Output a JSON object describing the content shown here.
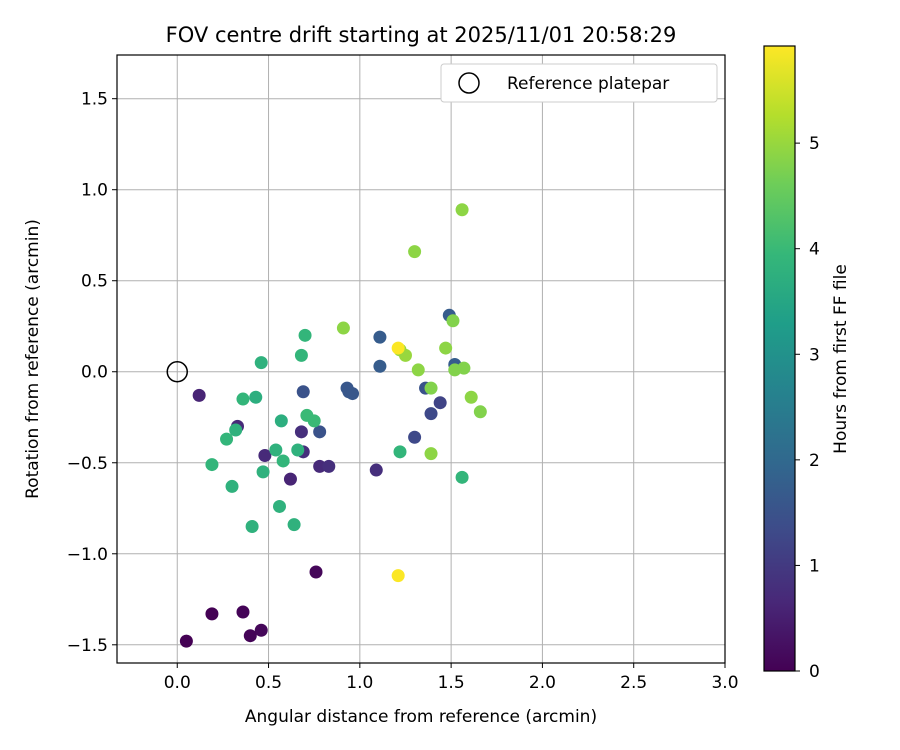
{
  "chart_data": {
    "type": "scatter",
    "title": "FOV centre drift starting at 2025/11/01 20:58:29",
    "xlabel": "Angular distance from reference (arcmin)",
    "ylabel": "Rotation from reference (arcmin)",
    "xlim": [
      -0.33,
      3.0
    ],
    "ylim": [
      -1.6,
      1.74
    ],
    "xticks": [
      0.0,
      0.5,
      1.0,
      1.5,
      2.0,
      2.5,
      3.0
    ],
    "xtick_labels": [
      "0.0",
      "0.5",
      "1.0",
      "1.5",
      "2.0",
      "2.5",
      "3.0"
    ],
    "yticks": [
      -1.5,
      -1.0,
      -0.5,
      0.0,
      0.5,
      1.0,
      1.5
    ],
    "ytick_labels": [
      "−1.5",
      "−1.0",
      "−0.5",
      "0.0",
      "0.5",
      "1.0",
      "1.5"
    ],
    "grid": true,
    "legend": {
      "position": "top-right",
      "entries": [
        "Reference platepar"
      ]
    },
    "reference_point": {
      "x": 0.0,
      "y": 0.0
    },
    "colorbar": {
      "label": "Hours from first FF file",
      "colormap": "viridis",
      "range": [
        0,
        5.92
      ],
      "ticks": [
        0,
        1,
        2,
        3,
        4,
        5
      ],
      "tick_labels": [
        "0",
        "1",
        "2",
        "3",
        "4",
        "5"
      ]
    },
    "points": [
      {
        "x": 0.05,
        "y": -1.48,
        "h": 0.0
      },
      {
        "x": 0.19,
        "y": -1.33,
        "h": 0.0
      },
      {
        "x": 0.36,
        "y": -1.32,
        "h": 0.05
      },
      {
        "x": 0.4,
        "y": -1.45,
        "h": 0.05
      },
      {
        "x": 0.46,
        "y": -1.42,
        "h": 0.1
      },
      {
        "x": 0.76,
        "y": -1.1,
        "h": 0.1
      },
      {
        "x": 0.12,
        "y": -0.13,
        "h": 0.6
      },
      {
        "x": 0.33,
        "y": -0.3,
        "h": 0.7
      },
      {
        "x": 0.48,
        "y": -0.46,
        "h": 0.7
      },
      {
        "x": 0.62,
        "y": -0.59,
        "h": 0.6
      },
      {
        "x": 0.68,
        "y": -0.33,
        "h": 0.8
      },
      {
        "x": 0.69,
        "y": -0.44,
        "h": 0.8
      },
      {
        "x": 0.78,
        "y": -0.52,
        "h": 0.7
      },
      {
        "x": 0.83,
        "y": -0.52,
        "h": 0.8
      },
      {
        "x": 1.09,
        "y": -0.54,
        "h": 0.8
      },
      {
        "x": 0.69,
        "y": -0.11,
        "h": 1.5
      },
      {
        "x": 0.78,
        "y": -0.33,
        "h": 1.5
      },
      {
        "x": 0.93,
        "y": -0.09,
        "h": 1.6
      },
      {
        "x": 0.94,
        "y": -0.11,
        "h": 1.6
      },
      {
        "x": 0.96,
        "y": -0.12,
        "h": 1.6
      },
      {
        "x": 1.11,
        "y": 0.19,
        "h": 1.7
      },
      {
        "x": 1.11,
        "y": 0.03,
        "h": 1.7
      },
      {
        "x": 1.3,
        "y": -0.36,
        "h": 1.3
      },
      {
        "x": 1.36,
        "y": -0.09,
        "h": 1.5
      },
      {
        "x": 1.39,
        "y": -0.23,
        "h": 1.3
      },
      {
        "x": 1.44,
        "y": -0.17,
        "h": 1.2
      },
      {
        "x": 1.49,
        "y": 0.31,
        "h": 1.7
      },
      {
        "x": 1.52,
        "y": 0.04,
        "h": 1.7
      },
      {
        "x": 0.19,
        "y": -0.51,
        "h": 3.9
      },
      {
        "x": 0.27,
        "y": -0.37,
        "h": 3.9
      },
      {
        "x": 0.3,
        "y": -0.63,
        "h": 3.8
      },
      {
        "x": 0.32,
        "y": -0.32,
        "h": 3.8
      },
      {
        "x": 0.36,
        "y": -0.15,
        "h": 3.9
      },
      {
        "x": 0.41,
        "y": -0.85,
        "h": 3.8
      },
      {
        "x": 0.43,
        "y": -0.14,
        "h": 3.7
      },
      {
        "x": 0.46,
        "y": 0.05,
        "h": 3.8
      },
      {
        "x": 0.47,
        "y": -0.55,
        "h": 3.8
      },
      {
        "x": 0.54,
        "y": -0.43,
        "h": 3.8
      },
      {
        "x": 0.56,
        "y": -0.74,
        "h": 3.8
      },
      {
        "x": 0.57,
        "y": -0.27,
        "h": 3.7
      },
      {
        "x": 0.58,
        "y": -0.49,
        "h": 3.9
      },
      {
        "x": 0.64,
        "y": -0.84,
        "h": 3.8
      },
      {
        "x": 0.66,
        "y": -0.43,
        "h": 3.8
      },
      {
        "x": 0.68,
        "y": 0.09,
        "h": 3.9
      },
      {
        "x": 0.7,
        "y": 0.2,
        "h": 3.9
      },
      {
        "x": 0.71,
        "y": -0.24,
        "h": 4.0
      },
      {
        "x": 0.75,
        "y": -0.27,
        "h": 4.0
      },
      {
        "x": 1.22,
        "y": -0.44,
        "h": 3.9
      },
      {
        "x": 1.56,
        "y": -0.58,
        "h": 3.9
      },
      {
        "x": 0.91,
        "y": 0.24,
        "h": 4.9
      },
      {
        "x": 1.22,
        "y": 0.12,
        "h": 5.0
      },
      {
        "x": 1.25,
        "y": 0.09,
        "h": 5.0
      },
      {
        "x": 1.3,
        "y": 0.66,
        "h": 4.9
      },
      {
        "x": 1.32,
        "y": 0.01,
        "h": 4.9
      },
      {
        "x": 1.39,
        "y": -0.09,
        "h": 4.8
      },
      {
        "x": 1.39,
        "y": -0.45,
        "h": 4.9
      },
      {
        "x": 1.47,
        "y": 0.13,
        "h": 4.9
      },
      {
        "x": 1.51,
        "y": 0.28,
        "h": 4.8
      },
      {
        "x": 1.52,
        "y": 0.01,
        "h": 4.8
      },
      {
        "x": 1.56,
        "y": 0.89,
        "h": 4.9
      },
      {
        "x": 1.57,
        "y": 0.02,
        "h": 4.8
      },
      {
        "x": 1.61,
        "y": -0.14,
        "h": 4.9
      },
      {
        "x": 1.66,
        "y": -0.22,
        "h": 4.8
      },
      {
        "x": 1.21,
        "y": 0.13,
        "h": 5.9
      },
      {
        "x": 1.21,
        "y": -1.12,
        "h": 5.9
      }
    ]
  }
}
